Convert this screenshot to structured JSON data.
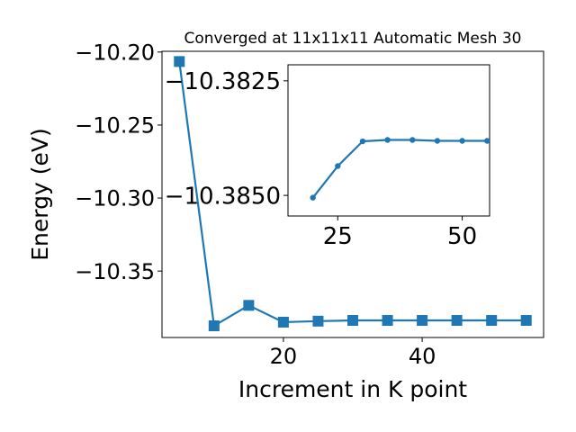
{
  "chart_data": [
    {
      "type": "line",
      "title": "Converged at 11x11x11 Automatic Mesh 30",
      "xlabel": "Increment in K point",
      "ylabel": "Energy (eV)",
      "xlim": [
        2.5,
        57.5
      ],
      "ylim": [
        -10.3955,
        -10.1995
      ],
      "xticks": [
        20,
        40
      ],
      "yticks": [
        -10.2,
        -10.25,
        -10.3,
        -10.35
      ],
      "ytick_labels": [
        "−10.20",
        "−10.25",
        "−10.30",
        "−10.35"
      ],
      "grid": false,
      "marker": "square",
      "color": "#1f77b4",
      "series": [
        {
          "x": [
            5,
            10,
            15,
            20,
            25,
            30,
            35,
            40,
            45,
            50,
            55
          ],
          "y": [
            -10.2065,
            -10.3875,
            -10.3735,
            -10.385,
            -10.3843,
            -10.3838,
            -10.3838,
            -10.3838,
            -10.3838,
            -10.3838,
            -10.3838
          ]
        }
      ]
    },
    {
      "type": "line",
      "inset": true,
      "xlim": [
        15,
        55.5
      ],
      "ylim": [
        -10.38545,
        -10.38215
      ],
      "xticks": [
        25,
        50
      ],
      "yticks": [
        -10.385,
        -10.3825
      ],
      "ytick_labels": [
        "−10.3850",
        "−10.3825"
      ],
      "grid": false,
      "marker": "circle",
      "color": "#1f77b4",
      "series": [
        {
          "x": [
            20,
            25,
            30,
            35,
            40,
            45,
            50,
            55
          ],
          "y": [
            -10.38505,
            -10.38436,
            -10.38382,
            -10.38379,
            -10.38379,
            -10.38381,
            -10.38381,
            -10.38381
          ]
        }
      ]
    }
  ]
}
